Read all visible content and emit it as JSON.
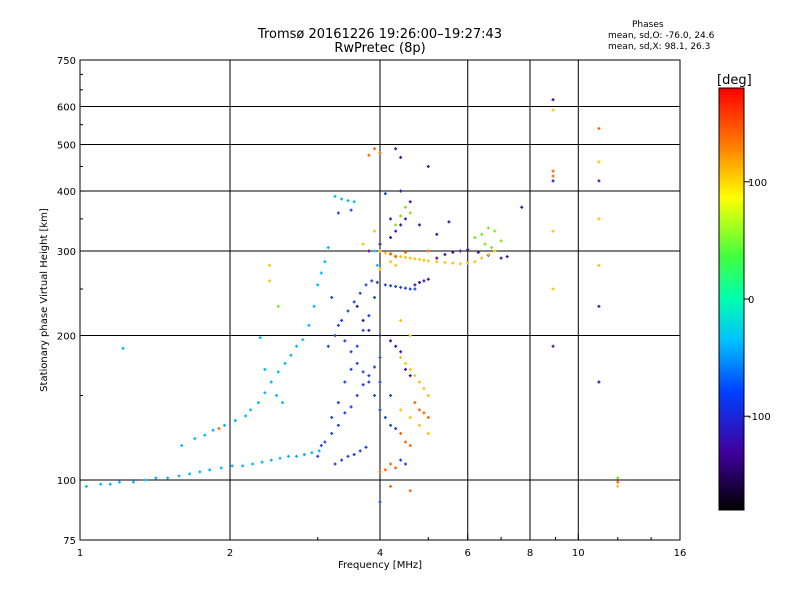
{
  "header": {
    "title": "Tromsø 20161226 19:26:00–19:27:43",
    "subtitle": "RwPretec (8p)"
  },
  "stats": {
    "heading": "Phases",
    "line_o": "mean, sd,O: -76.0, 24.6",
    "line_x": "mean, sd,X:  98.1, 26.3"
  },
  "colorbar": {
    "label": "[deg]",
    "ticks": [
      "100",
      "0",
      "-100"
    ],
    "tick_values": [
      100,
      0,
      -100
    ],
    "range": [
      -180,
      180
    ]
  },
  "chart_data": {
    "type": "scatter",
    "title": "Tromsø 20161226 19:26:00–19:27:43",
    "subtitle": "RwPretec (8p)",
    "xlabel": "Frequency [MHz]",
    "ylabel": "Stationary phase Virtual Height [km]",
    "x_scale": "log",
    "y_scale": "log",
    "xlim": [
      1,
      16
    ],
    "ylim": [
      75,
      750
    ],
    "x_ticks": [
      1,
      2,
      4,
      6,
      8,
      10,
      16
    ],
    "x_tick_labels": [
      "1",
      "2",
      "4",
      "6",
      "8",
      "10",
      "16"
    ],
    "y_ticks": [
      75,
      100,
      200,
      300,
      400,
      500,
      600,
      750
    ],
    "y_tick_labels": [
      "75",
      "100",
      "200",
      "300",
      "400",
      "500",
      "600",
      "750"
    ],
    "grid_x": [
      1,
      2,
      4,
      6,
      8,
      10,
      16
    ],
    "grid_y": [
      100,
      200,
      300,
      400,
      500,
      600
    ],
    "color_by": "phase [deg]",
    "color_range": [
      -180,
      180
    ],
    "series": [
      {
        "color": "#00b4ff",
        "points": [
          [
            1.03,
            97
          ],
          [
            1.1,
            98
          ],
          [
            1.15,
            98
          ],
          [
            1.2,
            99
          ],
          [
            1.28,
            99
          ],
          [
            1.35,
            100
          ],
          [
            1.42,
            101
          ],
          [
            1.5,
            101
          ],
          [
            1.58,
            102
          ],
          [
            1.66,
            103
          ],
          [
            1.74,
            104
          ],
          [
            1.82,
            105
          ],
          [
            1.92,
            106
          ],
          [
            2.02,
            107
          ],
          [
            2.12,
            107
          ],
          [
            2.22,
            108
          ],
          [
            2.32,
            109
          ],
          [
            2.42,
            110
          ],
          [
            2.52,
            111
          ],
          [
            2.62,
            112
          ],
          [
            2.72,
            112
          ],
          [
            2.82,
            113
          ],
          [
            2.92,
            114
          ],
          [
            3.02,
            115
          ],
          [
            1.6,
            118
          ],
          [
            1.7,
            122
          ],
          [
            1.78,
            124
          ],
          [
            1.85,
            127
          ],
          [
            1.95,
            130
          ],
          [
            2.05,
            133
          ],
          [
            2.15,
            136
          ],
          [
            2.2,
            140
          ],
          [
            2.28,
            145
          ],
          [
            2.35,
            152
          ],
          [
            2.42,
            160
          ],
          [
            2.5,
            168
          ],
          [
            2.58,
            175
          ],
          [
            2.65,
            182
          ],
          [
            2.72,
            190
          ],
          [
            2.8,
            196
          ],
          [
            2.88,
            210
          ],
          [
            2.95,
            230
          ],
          [
            3.0,
            255
          ],
          [
            3.05,
            270
          ],
          [
            3.1,
            285
          ],
          [
            3.15,
            305
          ],
          [
            3.25,
            390
          ],
          [
            3.35,
            385
          ],
          [
            3.45,
            382
          ],
          [
            3.55,
            380
          ],
          [
            2.3,
            198
          ],
          [
            2.35,
            170
          ],
          [
            2.48,
            150
          ],
          [
            2.55,
            145
          ],
          [
            1.22,
            188
          ],
          [
            3.9,
            300
          ],
          [
            3.95,
            280
          ]
        ]
      },
      {
        "color": "#2040e0",
        "points": [
          [
            3.1,
            120
          ],
          [
            3.2,
            125
          ],
          [
            3.3,
            130
          ],
          [
            3.4,
            138
          ],
          [
            3.5,
            142
          ],
          [
            3.6,
            150
          ],
          [
            3.7,
            158
          ],
          [
            3.8,
            165
          ],
          [
            3.9,
            172
          ],
          [
            4.0,
            180
          ],
          [
            3.15,
            190
          ],
          [
            3.25,
            200
          ],
          [
            3.35,
            215
          ],
          [
            3.45,
            225
          ],
          [
            3.55,
            235
          ],
          [
            3.65,
            245
          ],
          [
            3.75,
            255
          ],
          [
            3.85,
            260
          ],
          [
            3.95,
            258
          ],
          [
            4.1,
            255
          ],
          [
            4.2,
            254
          ],
          [
            4.3,
            253
          ],
          [
            4.4,
            252
          ],
          [
            4.5,
            251
          ],
          [
            4.6,
            250
          ],
          [
            4.7,
            250
          ],
          [
            3.2,
            240
          ],
          [
            3.3,
            210
          ],
          [
            3.4,
            195
          ],
          [
            3.5,
            185
          ],
          [
            3.6,
            175
          ],
          [
            3.7,
            168
          ],
          [
            3.8,
            160
          ],
          [
            3.9,
            150
          ],
          [
            4.0,
            140
          ],
          [
            4.1,
            135
          ],
          [
            4.2,
            130
          ],
          [
            4.3,
            128
          ],
          [
            3.25,
            108
          ],
          [
            3.35,
            110
          ],
          [
            3.45,
            112
          ],
          [
            3.55,
            113
          ],
          [
            3.65,
            115
          ],
          [
            3.75,
            117
          ],
          [
            3.0,
            112
          ],
          [
            3.05,
            118
          ],
          [
            3.2,
            135
          ],
          [
            3.3,
            145
          ],
          [
            3.4,
            160
          ],
          [
            3.5,
            170
          ],
          [
            3.6,
            190
          ],
          [
            3.7,
            205
          ],
          [
            3.8,
            220
          ],
          [
            3.9,
            240
          ],
          [
            4.0,
            160
          ],
          [
            4.2,
            150
          ],
          [
            4.4,
            110
          ],
          [
            4.5,
            108
          ],
          [
            4.0,
            90
          ],
          [
            3.3,
            360
          ],
          [
            3.5,
            365
          ],
          [
            4.1,
            395
          ]
        ]
      },
      {
        "color": "#4010a0",
        "points": [
          [
            3.6,
            230
          ],
          [
            3.7,
            215
          ],
          [
            3.8,
            205
          ],
          [
            4.0,
            200
          ],
          [
            4.2,
            195
          ],
          [
            4.3,
            190
          ],
          [
            4.4,
            185
          ],
          [
            4.5,
            170
          ],
          [
            4.6,
            165
          ],
          [
            4.7,
            255
          ],
          [
            4.8,
            258
          ],
          [
            4.9,
            260
          ],
          [
            5.0,
            262
          ],
          [
            5.2,
            290
          ],
          [
            5.4,
            295
          ],
          [
            5.6,
            298
          ],
          [
            5.8,
            300
          ],
          [
            6.0,
            302
          ],
          [
            6.3,
            298
          ],
          [
            6.6,
            294
          ],
          [
            7.0,
            290
          ],
          [
            7.2,
            292
          ],
          [
            3.8,
            300
          ],
          [
            4.0,
            310
          ],
          [
            4.2,
            320
          ],
          [
            4.3,
            330
          ],
          [
            4.4,
            340
          ],
          [
            4.5,
            350
          ],
          [
            4.8,
            340
          ],
          [
            5.2,
            325
          ],
          [
            5.5,
            345
          ],
          [
            4.6,
            380
          ],
          [
            4.4,
            400
          ],
          [
            4.2,
            350
          ],
          [
            4.4,
            470
          ],
          [
            4.3,
            490
          ],
          [
            5.0,
            450
          ],
          [
            7.7,
            370
          ],
          [
            8.9,
            620
          ],
          [
            8.9,
            420
          ],
          [
            8.9,
            190
          ],
          [
            11.0,
            420
          ],
          [
            11.0,
            230
          ],
          [
            11.0,
            160
          ]
        ]
      },
      {
        "color": "#ffc000",
        "points": [
          [
            4.0,
            300
          ],
          [
            4.1,
            297
          ],
          [
            4.2,
            295
          ],
          [
            4.3,
            293
          ],
          [
            4.4,
            292
          ],
          [
            4.5,
            291
          ],
          [
            4.6,
            290
          ],
          [
            4.7,
            289
          ],
          [
            4.8,
            288
          ],
          [
            4.9,
            287
          ],
          [
            5.0,
            286
          ],
          [
            5.2,
            285
          ],
          [
            5.4,
            284
          ],
          [
            5.6,
            283
          ],
          [
            5.8,
            282
          ],
          [
            6.0,
            283
          ],
          [
            6.2,
            285
          ],
          [
            6.4,
            290
          ],
          [
            6.6,
            295
          ],
          [
            6.8,
            300
          ],
          [
            4.4,
            180
          ],
          [
            4.5,
            175
          ],
          [
            4.6,
            170
          ],
          [
            4.7,
            165
          ],
          [
            4.8,
            160
          ],
          [
            4.9,
            155
          ],
          [
            5.0,
            150
          ],
          [
            4.4,
            140
          ],
          [
            4.6,
            135
          ],
          [
            4.8,
            130
          ],
          [
            5.0,
            125
          ],
          [
            4.2,
            285
          ],
          [
            4.3,
            280
          ],
          [
            4.0,
            275
          ],
          [
            2.4,
            280
          ],
          [
            2.4,
            260
          ],
          [
            3.9,
            330
          ],
          [
            3.7,
            310
          ],
          [
            8.9,
            590
          ],
          [
            8.9,
            330
          ],
          [
            8.9,
            250
          ],
          [
            11.0,
            460
          ],
          [
            11.0,
            350
          ],
          [
            11.0,
            280
          ],
          [
            12.0,
            97
          ],
          [
            4.4,
            215
          ],
          [
            4.6,
            200
          ]
        ]
      },
      {
        "color": "#ff6000",
        "points": [
          [
            4.2,
            108
          ],
          [
            4.3,
            106
          ],
          [
            4.0,
            104
          ],
          [
            4.1,
            105
          ],
          [
            4.4,
            125
          ],
          [
            4.5,
            120
          ],
          [
            4.6,
            118
          ],
          [
            4.7,
            145
          ],
          [
            4.8,
            140
          ],
          [
            4.9,
            138
          ],
          [
            5.0,
            135
          ],
          [
            4.3,
            292
          ],
          [
            4.2,
            296
          ],
          [
            4.5,
            298
          ],
          [
            5.0,
            300
          ],
          [
            3.9,
            490
          ],
          [
            4.0,
            480
          ],
          [
            8.9,
            440
          ],
          [
            8.9,
            430
          ],
          [
            11.0,
            540
          ],
          [
            12.0,
            99
          ],
          [
            3.8,
            475
          ],
          [
            1.9,
            128
          ],
          [
            4.2,
            97
          ],
          [
            4.6,
            95
          ]
        ]
      },
      {
        "color": "#80e020",
        "points": [
          [
            6.2,
            320
          ],
          [
            6.4,
            325
          ],
          [
            6.6,
            335
          ],
          [
            6.8,
            330
          ],
          [
            7.0,
            315
          ],
          [
            6.5,
            310
          ],
          [
            6.7,
            305
          ],
          [
            4.5,
            370
          ],
          [
            4.6,
            360
          ],
          [
            4.4,
            355
          ],
          [
            4.3,
            340
          ],
          [
            2.5,
            230
          ],
          [
            12.0,
            101
          ]
        ]
      }
    ]
  }
}
